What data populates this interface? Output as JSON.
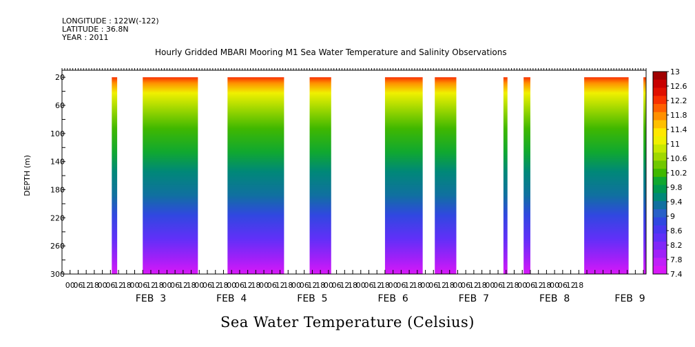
{
  "header": {
    "longitude": "LONGITUDE : 122W(-122)",
    "latitude": "LATITUDE : 36.8N",
    "year": "YEAR : 2011"
  },
  "chart_data": {
    "type": "heatmap",
    "title": "Hourly Gridded MBARI Mooring M1 Sea Water Temperature and Salinity Observations",
    "ylabel": "DEPTH (m)",
    "colorbar_title": "Sea Water Temperature (Celsius)",
    "xlim_hours": [
      -30,
      404
    ],
    "ylim": [
      300,
      10
    ],
    "y_ticks": [
      20,
      60,
      100,
      140,
      180,
      220,
      260,
      300
    ],
    "x_tick_labels": [
      "00",
      "06",
      "12",
      "18",
      "00",
      "06",
      "12",
      "18",
      "00",
      "06",
      "12",
      "18",
      "00",
      "06",
      "12",
      "18",
      "00",
      "06",
      "12",
      "18",
      "00",
      "06",
      "12",
      "18",
      "00",
      "06",
      "12",
      "18",
      "00",
      "06",
      "12",
      "18",
      "00",
      "06",
      "12",
      "18",
      "00",
      "06",
      "12",
      "18",
      "00",
      "06",
      "12",
      "18",
      "00",
      "06",
      "12",
      "18",
      "00",
      "06",
      "12",
      "18",
      "00",
      "06",
      "12",
      "18",
      "00",
      "06",
      "12",
      "18",
      "00",
      "06",
      "12",
      "18",
      "00",
      "06",
      "12",
      "18",
      "00",
      "06",
      "12",
      "18"
    ],
    "x_tick_labels_visible": [
      "00",
      "06",
      "12",
      "18",
      "00",
      "06",
      "12",
      "18",
      "00",
      "06",
      "12",
      "18",
      "00",
      "06",
      "12",
      "18",
      "00",
      "06",
      "12",
      "18",
      "00",
      "06",
      "12",
      "18",
      "00",
      "06",
      "12",
      "18",
      "00",
      "06",
      "12",
      "18",
      "00",
      "06",
      "12",
      "18",
      "00",
      "06",
      "12",
      "18",
      "00",
      "06",
      "12",
      "18",
      "00",
      "06",
      "12",
      "18",
      "00",
      "06",
      "12",
      "18",
      "00",
      "06",
      "12",
      "18",
      "00",
      "06",
      "12",
      "18",
      "00",
      "06",
      "12",
      "18"
    ],
    "day_labels": [
      {
        "label": "FEB  3",
        "hour": 36
      },
      {
        "label": "FEB  4",
        "hour": 96
      },
      {
        "label": "FEB  5",
        "hour": 156
      },
      {
        "label": "FEB  6",
        "hour": 216
      },
      {
        "label": "FEB  7",
        "hour": 276
      },
      {
        "label": "FEB  8",
        "hour": 336
      },
      {
        "label": "FEB  9",
        "hour": 392
      }
    ],
    "data_segments_hours": [
      [
        7,
        11
      ],
      [
        30,
        71
      ],
      [
        93,
        135
      ],
      [
        154,
        170
      ],
      [
        210,
        238
      ],
      [
        247,
        263
      ],
      [
        298,
        301
      ],
      [
        313,
        318
      ],
      [
        358,
        391
      ],
      [
        402,
        410
      ]
    ],
    "colorbar_levels": [
      13,
      12.6,
      12.2,
      11.8,
      11.4,
      11,
      10.6,
      10.2,
      9.8,
      9.4,
      9,
      8.6,
      8.2,
      7.8,
      7.4
    ],
    "colorbar_colors": [
      "#a00000",
      "#c80000",
      "#e01000",
      "#f83000",
      "#ff6000",
      "#ff9000",
      "#ffc000",
      "#ffe800",
      "#f0f000",
      "#c8e800",
      "#a0d800",
      "#70c800",
      "#40b800",
      "#10a830",
      "#009850",
      "#008878",
      "#1070a0",
      "#2860c8",
      "#3048e0",
      "#4838f0",
      "#6030f8",
      "#8028f8",
      "#a020f8",
      "#c020f8",
      "#d818f8"
    ],
    "colorbar_labels": [
      "13",
      "12.6",
      "12.2",
      "11.8",
      "11.4",
      "11",
      "10.6",
      "10.2",
      "9.8",
      "9.4",
      "9",
      "8.6",
      "8.2",
      "7.8",
      "7.4"
    ]
  }
}
